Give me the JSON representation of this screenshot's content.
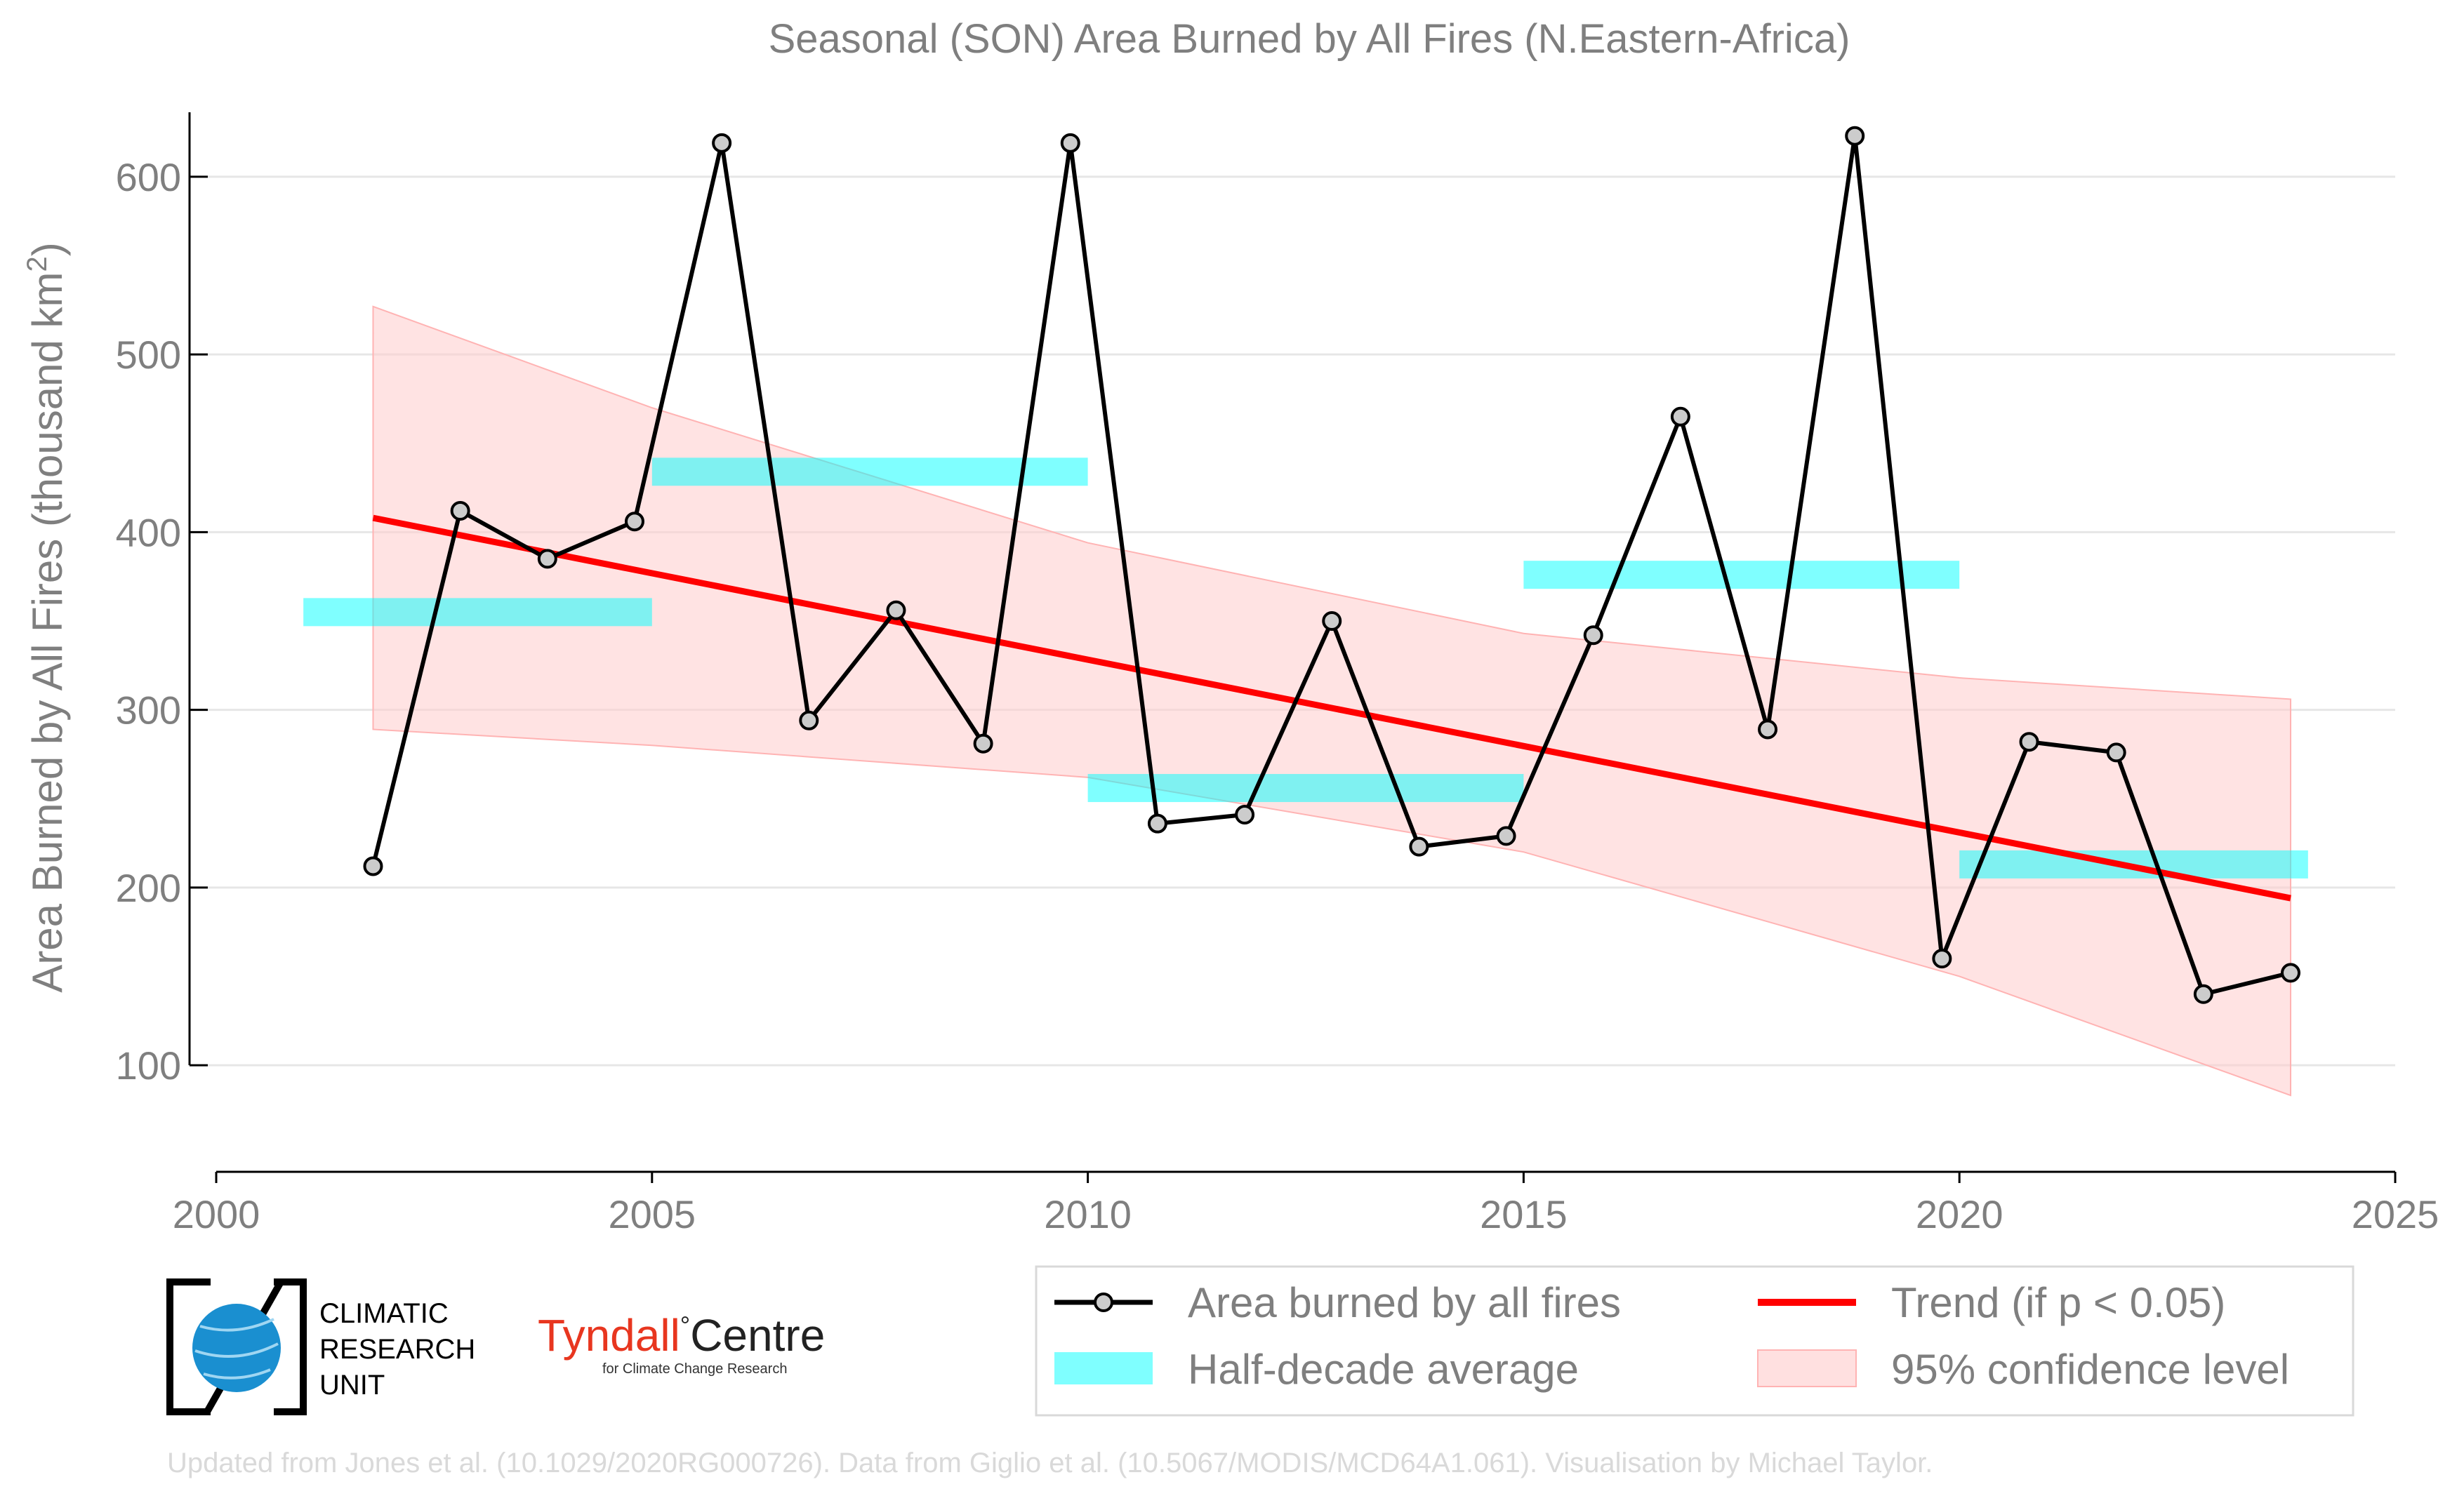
{
  "chart_data": {
    "type": "line",
    "title": "Seasonal (SON) Area Burned by All Fires (N.Eastern-Africa)",
    "ylabel": "Area Burned by All Fires (thousand km²)",
    "xlabel": "",
    "xlim": [
      2000,
      2025
    ],
    "ylim": [
      40,
      660
    ],
    "x_ticks": [
      2000,
      2005,
      2010,
      2015,
      2020,
      2025
    ],
    "y_ticks": [
      100,
      200,
      300,
      400,
      500,
      600
    ],
    "grid": "horizontal",
    "colors": {
      "series": "#000000",
      "marker_fill": "#cccccc",
      "half_decade": "#00ffff",
      "trend": "#ff0000",
      "confidence": "#ffcccc"
    },
    "series": [
      {
        "name": "Area burned by all fires",
        "x": [
          2001.8,
          2002.8,
          2003.8,
          2004.8,
          2005.8,
          2006.8,
          2007.8,
          2008.8,
          2009.8,
          2010.8,
          2011.8,
          2012.8,
          2013.8,
          2014.8,
          2015.8,
          2016.8,
          2017.8,
          2018.8,
          2019.8,
          2020.8,
          2021.8,
          2022.8,
          2023.8
        ],
        "values": [
          212,
          412,
          385,
          406,
          619,
          294,
          356,
          281,
          619,
          236,
          241,
          350,
          223,
          229,
          342,
          465,
          289,
          623,
          160,
          282,
          276,
          140,
          152
        ]
      }
    ],
    "half_decade_average": {
      "name": "Half-decade average",
      "segments": [
        {
          "x": [
            2001,
            2005
          ],
          "value": 355
        },
        {
          "x": [
            2005,
            2010
          ],
          "value": 434
        },
        {
          "x": [
            2010,
            2015
          ],
          "value": 256
        },
        {
          "x": [
            2015,
            2020
          ],
          "value": 376
        },
        {
          "x": [
            2020,
            2024
          ],
          "value": 213
        }
      ]
    },
    "trend": {
      "name": "Trend (if p < 0.05)",
      "x": [
        2001.8,
        2023.8
      ],
      "values": [
        408,
        194
      ]
    },
    "confidence_band": {
      "name": "95% confidence level",
      "x": [
        2001.8,
        2005,
        2010,
        2015,
        2020,
        2023.8
      ],
      "upper": [
        527,
        470,
        394,
        343,
        318,
        306
      ],
      "lower": [
        289,
        280,
        262,
        220,
        150,
        83
      ]
    },
    "legend": {
      "position": "bottom-right",
      "entries": [
        "Area burned by all fires",
        "Half-decade average",
        "Trend (if p < 0.05)",
        "95% confidence level"
      ]
    }
  },
  "logos": {
    "cru_lines": [
      "CLIMATIC",
      "RESEARCH",
      "UNIT"
    ],
    "tyndall_main": "Tyndall",
    "tyndall_degree": "°",
    "tyndall_centre": "Centre",
    "tyndall_sub": "for Climate Change Research"
  },
  "credit": "Updated from Jones et al. (10.1029/2020RG000726). Data from Giglio et al. (10.5067/MODIS/MCD64A1.061). Visualisation by Michael Taylor."
}
